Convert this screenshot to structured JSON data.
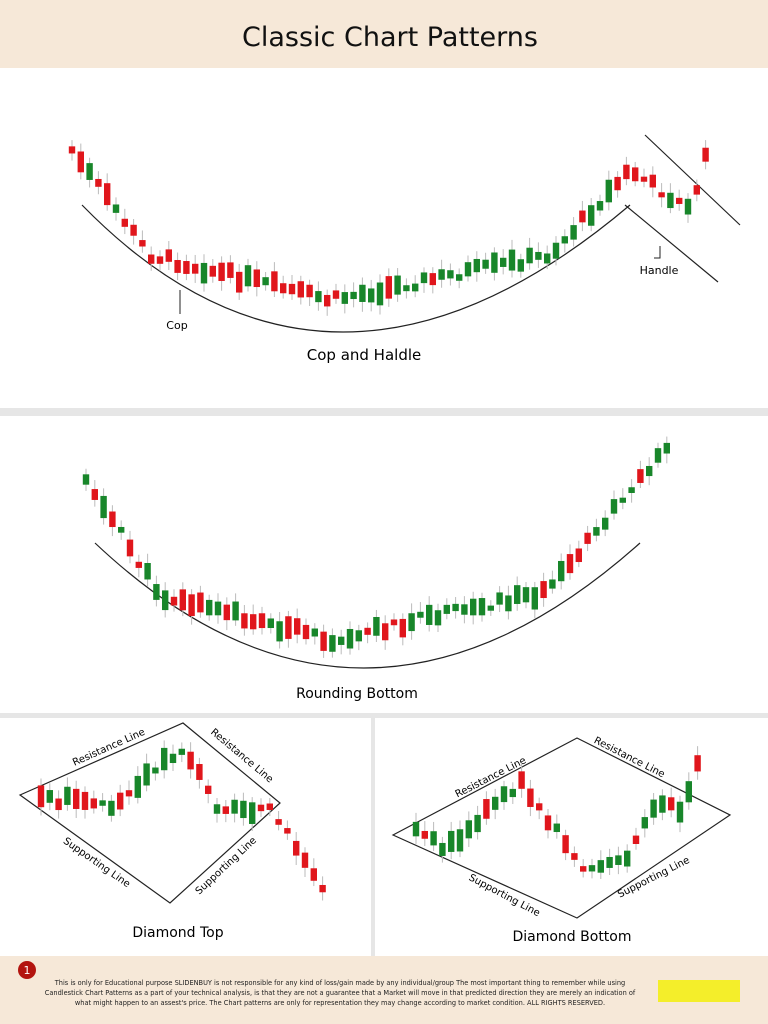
{
  "header": {
    "title": "Classic Chart Patterns"
  },
  "panels": [
    {
      "caption": "Cop and Haldle",
      "labels": [
        "Cop",
        "Handle"
      ]
    },
    {
      "caption": "Rounding Bottom"
    },
    {
      "caption": "Diamond Top",
      "labels": [
        "Resistance Line",
        "Resistance Line",
        "Supporting Line",
        "Supporting Line"
      ]
    },
    {
      "caption": "Diamond Bottom",
      "labels": [
        "Resistance Line",
        "Resistance Line",
        "Supporting Line",
        "Supporting Line"
      ]
    }
  ],
  "footer": {
    "badge": "1",
    "text": "This is only for Educational purpose SLIDENBUY is not responsible for any kind of loss/gain made by any individual/group The most important thing to remember while using Candlestick Chart Patterns as a part of your technical analysis, is that they are not a guarantee that a Market will move in that predicted direction they are merely an indication of what might happen to an assest's price. The Chart patterns are only for representation they may change according to market condition. ALL RIGHTS RESERVED."
  }
}
